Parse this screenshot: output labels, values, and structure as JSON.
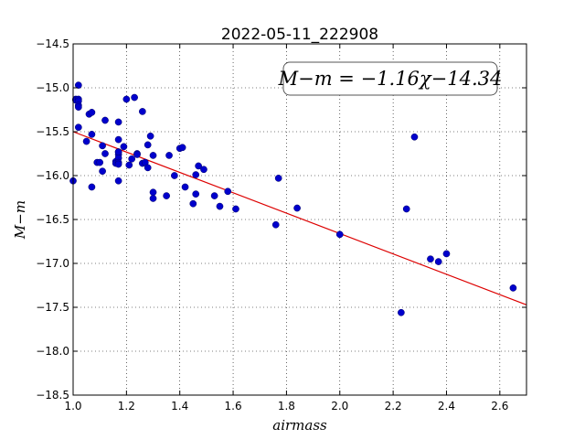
{
  "chart_data": {
    "type": "scatter",
    "title": "2022-05-11_222908",
    "xlabel": "airmass",
    "ylabel": "M−m",
    "xlim": [
      1.0,
      2.7
    ],
    "ylim": [
      -18.5,
      -14.5
    ],
    "xticks": [
      1.0,
      1.2,
      1.4,
      1.6,
      1.8,
      2.0,
      2.2,
      2.4,
      2.6
    ],
    "xtick_labels": [
      "1.0",
      "1.2",
      "1.4",
      "1.6",
      "1.8",
      "2.0",
      "2.2",
      "2.4",
      "2.6"
    ],
    "yticks": [
      -14.5,
      -15.0,
      -15.5,
      -16.0,
      -16.5,
      -17.0,
      -17.5,
      -18.0,
      -18.5
    ],
    "ytick_labels": [
      "−14.5",
      "−15.0",
      "−15.5",
      "−16.0",
      "−16.5",
      "−17.0",
      "−17.5",
      "−18.0",
      "−18.5"
    ],
    "grid": true,
    "annotation": "M−m = −1.16χ−14.34",
    "fit": {
      "slope": -1.16,
      "intercept": -14.34,
      "color": "#dd0000"
    },
    "point_color": "#0000cc",
    "x": [
      1.0,
      1.01,
      1.01,
      1.02,
      1.02,
      1.02,
      1.02,
      1.02,
      1.02,
      1.05,
      1.06,
      1.07,
      1.07,
      1.07,
      1.09,
      1.1,
      1.11,
      1.11,
      1.12,
      1.12,
      1.16,
      1.16,
      1.17,
      1.17,
      1.17,
      1.17,
      1.17,
      1.17,
      1.17,
      1.17,
      1.17,
      1.19,
      1.2,
      1.21,
      1.22,
      1.23,
      1.24,
      1.24,
      1.26,
      1.26,
      1.27,
      1.28,
      1.28,
      1.29,
      1.3,
      1.3,
      1.3,
      1.35,
      1.36,
      1.38,
      1.4,
      1.41,
      1.42,
      1.45,
      1.46,
      1.46,
      1.47,
      1.49,
      1.53,
      1.55,
      1.58,
      1.61,
      1.76,
      1.77,
      1.84,
      2.0,
      2.23,
      2.25,
      2.28,
      2.34,
      2.37,
      2.4,
      2.65
    ],
    "y": [
      -16.06,
      -15.13,
      -15.14,
      -14.97,
      -15.13,
      -15.15,
      -15.2,
      -15.22,
      -15.45,
      -15.61,
      -15.3,
      -15.28,
      -15.53,
      -16.13,
      -15.85,
      -15.85,
      -15.66,
      -15.95,
      -15.37,
      -15.75,
      -15.84,
      -15.86,
      -15.39,
      -15.59,
      -15.73,
      -15.76,
      -15.8,
      -15.85,
      -15.87,
      -15.73,
      -16.06,
      -15.67,
      -15.13,
      -15.88,
      -15.81,
      -15.11,
      -15.75,
      -15.76,
      -15.27,
      -15.86,
      -15.85,
      -15.65,
      -15.91,
      -15.55,
      -15.77,
      -16.19,
      -16.26,
      -16.23,
      -15.77,
      -16.0,
      -15.69,
      -15.68,
      -16.13,
      -16.32,
      -15.99,
      -16.21,
      -15.89,
      -15.93,
      -16.23,
      -16.35,
      -16.18,
      -16.38,
      -16.56,
      -16.03,
      -16.37,
      -16.67,
      -17.56,
      -16.38,
      -15.56,
      -16.95,
      -16.98,
      -16.89,
      -17.28
    ]
  }
}
